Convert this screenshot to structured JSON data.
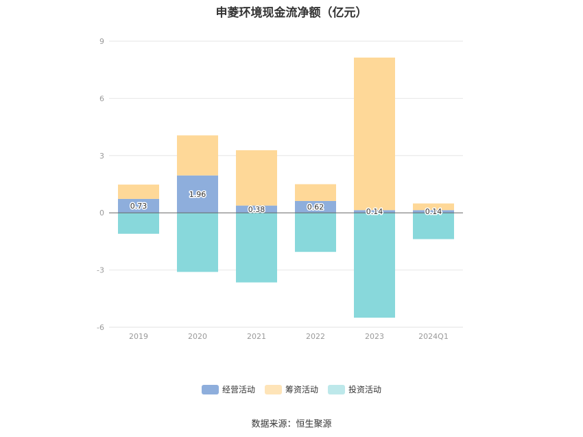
{
  "chart_data": {
    "type": "bar",
    "stacked": true,
    "title": "申菱环境现金流净额（亿元）",
    "categories": [
      "2019",
      "2020",
      "2021",
      "2022",
      "2023",
      "2024Q1"
    ],
    "series": [
      {
        "name": "经营活动",
        "color": "#8eaedc",
        "values": [
          0.73,
          1.96,
          0.38,
          0.62,
          0.14,
          0.14
        ],
        "labels": [
          "0.73",
          "1.96",
          "0.38",
          "0.62",
          "0.14",
          "0.14"
        ]
      },
      {
        "name": "筹资活动",
        "color": "#fed898",
        "values": [
          0.75,
          2.1,
          2.9,
          0.88,
          8.0,
          0.35
        ]
      },
      {
        "name": "投资活动",
        "color": "#88d8db",
        "values": [
          -1.1,
          -3.1,
          -3.65,
          -2.05,
          -5.5,
          -1.38
        ]
      }
    ],
    "yticks": [
      "9",
      "6",
      "3",
      "0",
      "-3",
      "-6"
    ],
    "ylim": [
      -6,
      9
    ],
    "grid": true,
    "legend_position": "bottom"
  },
  "legend": {
    "items": [
      {
        "label": "经营活动",
        "color": "#8eaedc"
      },
      {
        "label": "筹资活动",
        "color": "#fee4b8"
      },
      {
        "label": "投资活动",
        "color": "#bde8ea"
      }
    ]
  },
  "source": "数据来源：恒生聚源"
}
